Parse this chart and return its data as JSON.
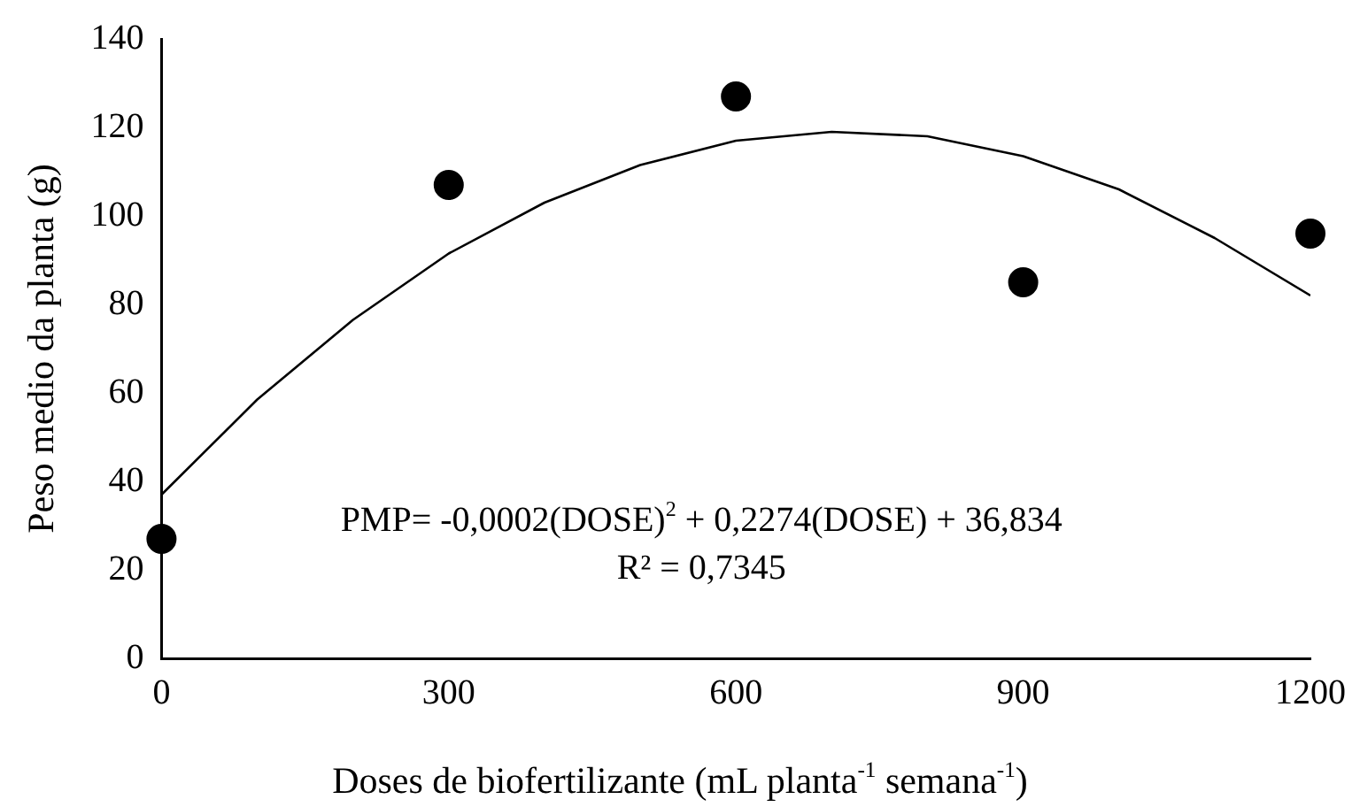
{
  "chart_data": {
    "type": "scatter",
    "xlabel": "Doses de biofertilizante (mL planta$^{-1}$ semana$^{-1}$)",
    "ylabel": "Peso medio da planta (g)",
    "x": [
      0,
      300,
      600,
      900,
      1200
    ],
    "series": [
      {
        "color": "#000000",
        "marker": "circle",
        "values": [
          27,
          107,
          127,
          85,
          96
        ]
      },
      {
        "type": "line",
        "marker": "none",
        "color": "#000000",
        "x": [
          0,
          100,
          200,
          300,
          400,
          500,
          600,
          700,
          800,
          900,
          1000,
          1100,
          1200
        ],
        "values": [
          37,
          58.5,
          76.5,
          91.5,
          103,
          111.5,
          117,
          119,
          118,
          113.5,
          106,
          95,
          82
        ]
      }
    ],
    "xlim": [
      0,
      1200
    ],
    "xticks": [
      0,
      300,
      600,
      900,
      1200
    ],
    "ylim": [
      0,
      140
    ],
    "yticks": [
      0,
      20,
      40,
      60,
      80,
      100,
      120,
      140
    ],
    "grid": false,
    "legend": false,
    "annotations": [
      "PMP= -0,0002(DOSE)$^{2}$ + 0,2274(DOSE) + 36,834",
      "R² = 0,7345"
    ]
  }
}
